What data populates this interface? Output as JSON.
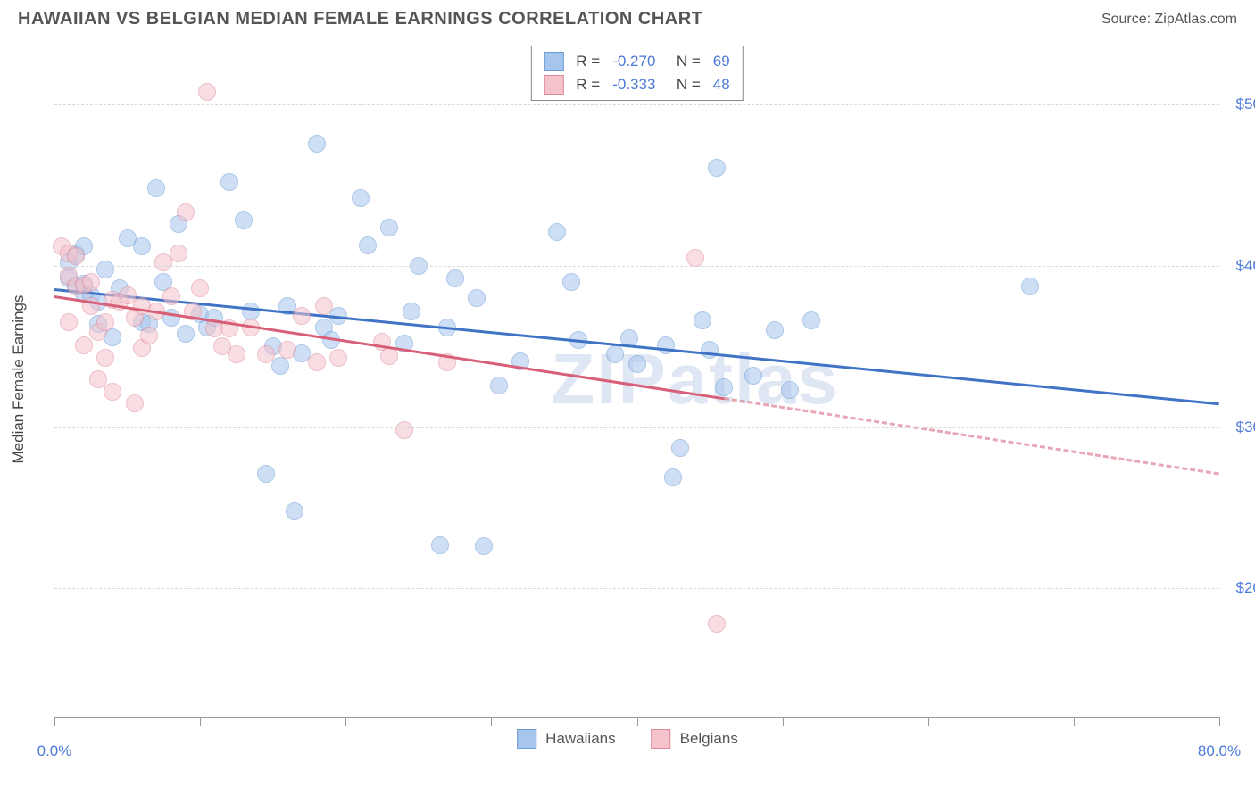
{
  "header": {
    "title": "HAWAIIAN VS BELGIAN MEDIAN FEMALE EARNINGS CORRELATION CHART",
    "source": "Source: ZipAtlas.com"
  },
  "watermark": "ZIPatlas",
  "chart": {
    "type": "scatter",
    "background_color": "#ffffff",
    "grid_color": "#d9d9d9",
    "axis_color": "#999999",
    "y_axis_title": "Median Female Earnings",
    "xlim": [
      0,
      80
    ],
    "ylim": [
      12000,
      54000
    ],
    "x_ticks": [
      0,
      10,
      20,
      30,
      40,
      50,
      60,
      70,
      80
    ],
    "x_tick_labels": {
      "0": "0.0%",
      "80": "80.0%"
    },
    "y_gridlines": [
      20000,
      30000,
      40000,
      50000
    ],
    "y_tick_labels": {
      "20000": "$20,000",
      "30000": "$30,000",
      "40000": "$40,000",
      "50000": "$50,000"
    },
    "label_fontsize": 17,
    "label_color": "#4b7ad8",
    "point_radius": 10,
    "point_opacity": 0.55,
    "series": [
      {
        "name": "Hawaiians",
        "color_fill": "#a7c6ed",
        "color_stroke": "#6a9ad4",
        "r": "-0.270",
        "n": "69",
        "trend": {
          "x1": 0,
          "y1": 38600,
          "x2": 80,
          "y2": 31500,
          "color": "#3f73c6",
          "width": 3,
          "solid_until_x": 80
        },
        "points": [
          [
            1,
            40200
          ],
          [
            1,
            39200
          ],
          [
            1.5,
            38800
          ],
          [
            1.5,
            40700
          ],
          [
            2,
            38300
          ],
          [
            2,
            38900
          ],
          [
            2,
            41200
          ],
          [
            2.5,
            38200
          ],
          [
            3,
            36400
          ],
          [
            3,
            37800
          ],
          [
            3.5,
            39800
          ],
          [
            4,
            35600
          ],
          [
            4.5,
            38600
          ],
          [
            5,
            41700
          ],
          [
            6,
            41200
          ],
          [
            6,
            36500
          ],
          [
            7,
            44800
          ],
          [
            7.5,
            39000
          ],
          [
            8,
            36800
          ],
          [
            8.5,
            42600
          ],
          [
            9,
            35800
          ],
          [
            10,
            37000
          ],
          [
            10.5,
            36200
          ],
          [
            11,
            36800
          ],
          [
            12,
            45200
          ],
          [
            13,
            42800
          ],
          [
            13.5,
            37200
          ],
          [
            14.5,
            27100
          ],
          [
            15,
            35000
          ],
          [
            15.5,
            33800
          ],
          [
            16,
            37500
          ],
          [
            16.5,
            24800
          ],
          [
            17,
            34600
          ],
          [
            18,
            47600
          ],
          [
            18.5,
            36200
          ],
          [
            19,
            35400
          ],
          [
            19.5,
            36900
          ],
          [
            21,
            44200
          ],
          [
            21.5,
            41300
          ],
          [
            23,
            42400
          ],
          [
            24,
            35200
          ],
          [
            24.5,
            37200
          ],
          [
            25,
            40000
          ],
          [
            26.5,
            22700
          ],
          [
            27,
            36200
          ],
          [
            27.5,
            39200
          ],
          [
            29,
            38000
          ],
          [
            29.5,
            22600
          ],
          [
            30.5,
            32600
          ],
          [
            32,
            34100
          ],
          [
            34.5,
            42100
          ],
          [
            35.5,
            39000
          ],
          [
            36,
            35400
          ],
          [
            38.5,
            34500
          ],
          [
            39.5,
            35500
          ],
          [
            40,
            33900
          ],
          [
            42,
            35100
          ],
          [
            42.5,
            26900
          ],
          [
            43,
            28700
          ],
          [
            44.5,
            36600
          ],
          [
            45,
            34800
          ],
          [
            45.5,
            46100
          ],
          [
            46,
            32500
          ],
          [
            48,
            33200
          ],
          [
            49.5,
            36000
          ],
          [
            50.5,
            32300
          ],
          [
            52,
            36600
          ],
          [
            67,
            38700
          ],
          [
            6.5,
            36400
          ]
        ]
      },
      {
        "name": "Belgians",
        "color_fill": "#f4c3cc",
        "color_stroke": "#e08a9b",
        "r": "-0.333",
        "n": "48",
        "trend": {
          "x1": 0,
          "y1": 38200,
          "x2": 80,
          "y2": 27200,
          "color": "#d85f78",
          "width": 3,
          "solid_until_x": 46
        },
        "points": [
          [
            0.5,
            41200
          ],
          [
            1,
            40800
          ],
          [
            1,
            39400
          ],
          [
            1,
            36500
          ],
          [
            1.5,
            38700
          ],
          [
            1.5,
            40600
          ],
          [
            2,
            38800
          ],
          [
            2,
            35100
          ],
          [
            2.5,
            37500
          ],
          [
            2.5,
            39000
          ],
          [
            3,
            33000
          ],
          [
            3,
            35900
          ],
          [
            3.5,
            36500
          ],
          [
            3.5,
            34300
          ],
          [
            4,
            37900
          ],
          [
            4,
            32200
          ],
          [
            4.5,
            37800
          ],
          [
            5,
            38200
          ],
          [
            5.5,
            36800
          ],
          [
            5.5,
            31500
          ],
          [
            6,
            34900
          ],
          [
            6,
            37500
          ],
          [
            6.5,
            35700
          ],
          [
            7,
            37200
          ],
          [
            7.5,
            40200
          ],
          [
            8,
            38100
          ],
          [
            8.5,
            40800
          ],
          [
            9,
            43300
          ],
          [
            9.5,
            37200
          ],
          [
            10,
            38600
          ],
          [
            10.5,
            50800
          ],
          [
            11,
            36100
          ],
          [
            11.5,
            35000
          ],
          [
            12,
            36100
          ],
          [
            12.5,
            34500
          ],
          [
            13.5,
            36200
          ],
          [
            14.5,
            34500
          ],
          [
            16,
            34800
          ],
          [
            17,
            36900
          ],
          [
            18,
            34000
          ],
          [
            18.5,
            37500
          ],
          [
            19.5,
            34300
          ],
          [
            22.5,
            35300
          ],
          [
            23,
            34400
          ],
          [
            24,
            29800
          ],
          [
            27,
            34000
          ],
          [
            44,
            40500
          ],
          [
            45.5,
            17800
          ]
        ]
      }
    ]
  },
  "legend_bottom": {
    "items": [
      {
        "label": "Hawaiians",
        "fill": "#a7c6ed",
        "stroke": "#6a9ad4"
      },
      {
        "label": "Belgians",
        "fill": "#f4c3cc",
        "stroke": "#e08a9b"
      }
    ]
  }
}
